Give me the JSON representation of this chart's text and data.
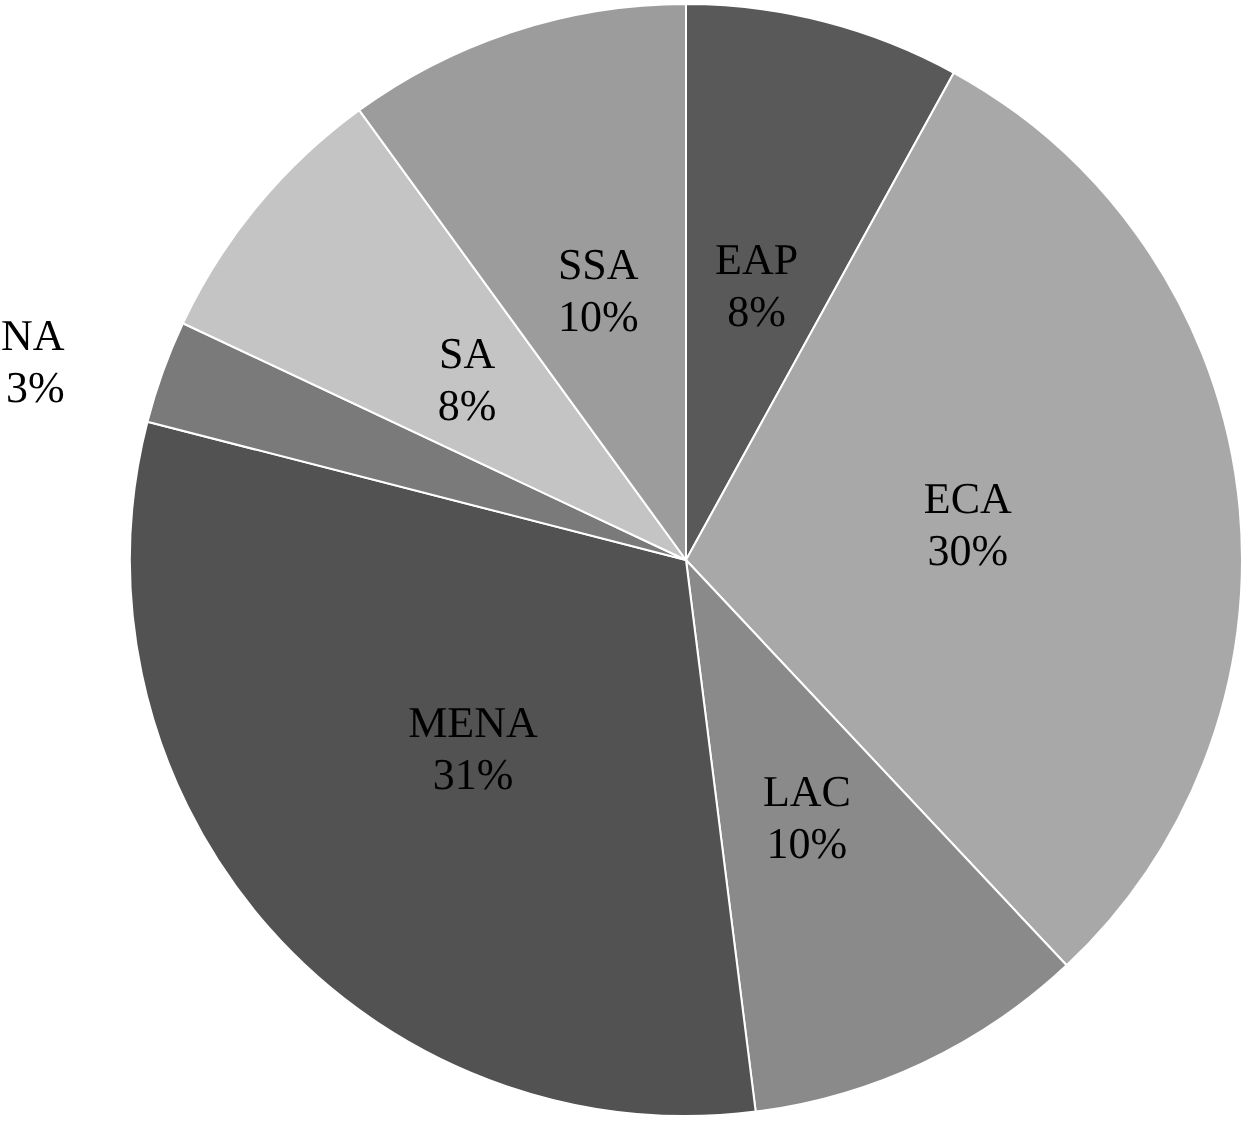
{
  "chart_data": {
    "type": "pie",
    "categories": [
      "EAP",
      "ECA",
      "LAC",
      "MENA",
      "NA",
      "SA",
      "SSA"
    ],
    "values": [
      8,
      30,
      10,
      31,
      3,
      8,
      10
    ],
    "colors": [
      "#595959",
      "#a8a8a8",
      "#8a8a8a",
      "#525252",
      "#7a7a7a",
      "#c4c4c4",
      "#9c9c9c"
    ],
    "value_labels": [
      "8%",
      "30%",
      "10%",
      "31%",
      "3%",
      "8%",
      "10%"
    ],
    "legend": false
  }
}
